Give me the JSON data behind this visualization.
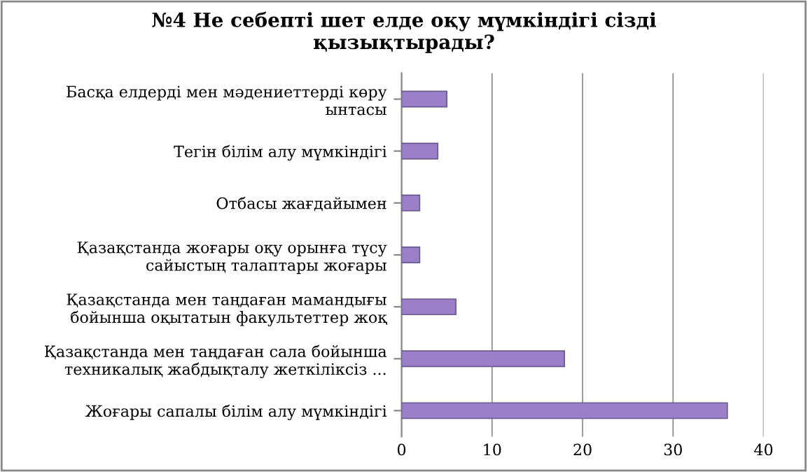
{
  "chart_data": {
    "type": "bar",
    "orientation": "horizontal",
    "title": "№4 Не себепті шет елде оқу мүмкіндігі сізді\nқызықтырады?",
    "categories": [
      "Басқа елдерді мен мәдениеттерді көру\nынтасы",
      "Тегін білім алу мүмкіндігі",
      "Отбасы жағдайымен",
      "Қазақстанда жоғары оқу орынға түсу\nсайыстың талаптары жоғары",
      "Қазақстанда мен таңдаған мамандығы\nбойынша оқытатын факультеттер жоқ",
      "Қазақстанда мен таңдаған сала бойынша\nтехникалық жабдықталу жеткіліксіз ...",
      "Жоғары сапалы білім алу мүмкіндігі"
    ],
    "values": [
      5,
      4,
      2,
      2,
      6,
      18,
      36
    ],
    "color": "#9b80c9",
    "xlim": [
      0,
      40
    ],
    "xticks": [
      0,
      10,
      20,
      30,
      40
    ],
    "grid": "x"
  }
}
